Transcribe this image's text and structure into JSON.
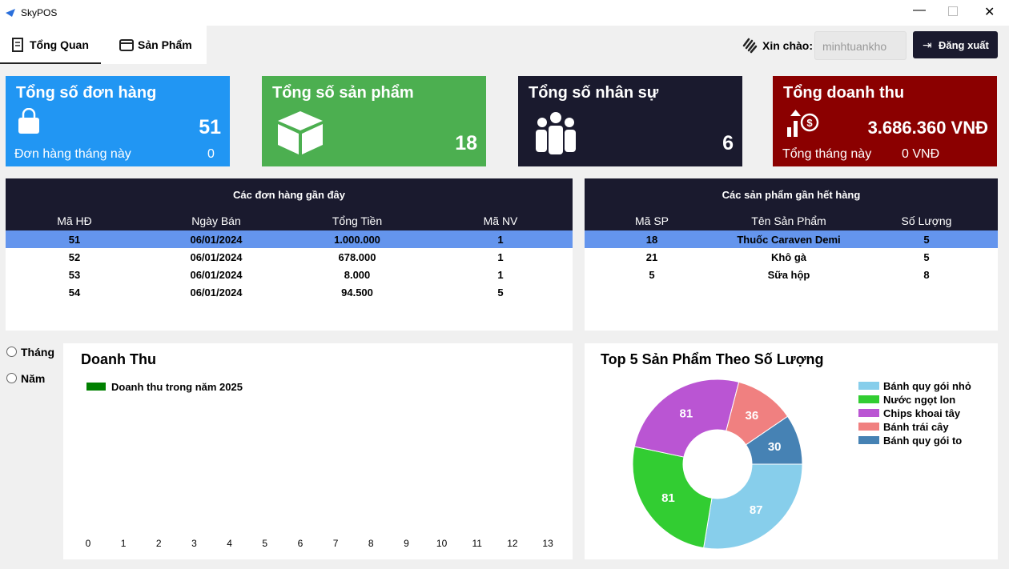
{
  "window": {
    "title": "SkyPOS"
  },
  "tabs": [
    "Tổng Quan",
    "Sản Phẩm"
  ],
  "user": {
    "greeting": "Xin chào:",
    "username": "minhtuankho",
    "logout": "Đăng xuất"
  },
  "cards": [
    {
      "title": "Tổng số đơn hàng",
      "value": "51",
      "subtitle": "Đơn hàng tháng này",
      "sub_value": "0"
    },
    {
      "title": "Tổng số sản phẩm",
      "value": "18"
    },
    {
      "title": "Tổng số nhân sự",
      "value": "6"
    },
    {
      "title": "Tổng doanh thu",
      "value": "3.686.360 VNĐ",
      "subtitle": "Tổng tháng này",
      "sub_value": "0 VNĐ"
    }
  ],
  "orders_table": {
    "title": "Các đơn hàng gần đây",
    "columns": [
      "Mã HĐ",
      "Ngày Bán",
      "Tổng Tiền",
      "Mã NV"
    ],
    "rows": [
      [
        "51",
        "06/01/2024",
        "1.000.000",
        "1"
      ],
      [
        "52",
        "06/01/2024",
        "678.000",
        "1"
      ],
      [
        "53",
        "06/01/2024",
        "8.000",
        "1"
      ],
      [
        "54",
        "06/01/2024",
        "94.500",
        "5"
      ]
    ]
  },
  "low_stock_table": {
    "title": "Các sản phẩm gần hết hàng",
    "columns": [
      "Mã SP",
      "Tên Sản Phẩm",
      "Số Lượng"
    ],
    "rows": [
      [
        "18",
        "Thuốc Caraven Demi",
        "5"
      ],
      [
        "21",
        "Khô gà",
        "5"
      ],
      [
        "5",
        "Sữa hộp",
        "8"
      ]
    ]
  },
  "period_options": [
    "Tháng",
    "Năm"
  ],
  "chart_data": [
    {
      "type": "bar",
      "title": "Doanh Thu",
      "series": [
        {
          "name": "Doanh thu trong năm 2025",
          "color": "#008000"
        }
      ],
      "xlim": [
        -0.7,
        13.7
      ],
      "xticks": [
        0,
        1,
        2,
        3,
        4,
        5,
        6,
        7,
        8,
        9,
        10,
        11,
        12,
        13
      ]
    },
    {
      "type": "pie",
      "title": "Top 5 Sản Phẩm Theo Số Lượng",
      "categories": [
        "Bánh quy gói nhỏ",
        "Nước ngọt lon",
        "Chips khoai tây",
        "Bánh trái cây",
        "Bánh quy gói to"
      ],
      "values": [
        87,
        81,
        81,
        36,
        30
      ],
      "colors": [
        "#87ceeb",
        "#32cd32",
        "#ba55d3",
        "#f08080",
        "#4682b4"
      ]
    }
  ]
}
